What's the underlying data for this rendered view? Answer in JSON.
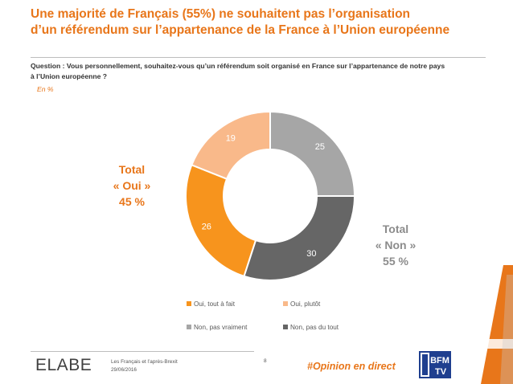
{
  "header": {
    "title_line1": "Une majorité de Français (55%) ne souhaitent pas l’organisation",
    "title_line2": "d’un référendum sur l’appartenance de la France à l’Union européenne",
    "question_line1": "Question : Vous personnellement, souhaitez-vous qu’un référendum soit organisé en France sur l’appartenance de notre pays",
    "question_line2": "à l’Union européenne ?",
    "unit": "En %"
  },
  "totals": {
    "oui_line1": "Total",
    "oui_line2": "« Oui »",
    "oui_line3": "45 %",
    "non_line1": "Total",
    "non_line2": "« Non »",
    "non_line3": "55 %"
  },
  "chart_data": {
    "type": "pie",
    "donut": true,
    "legend_position": "bottom",
    "categories": [
      "Oui, tout à fait",
      "Oui, plutôt",
      "Non, pas vraiment",
      "Non, pas du tout"
    ],
    "values": [
      26,
      19,
      25,
      30
    ],
    "colors": [
      "#F7941D",
      "#F9B98A",
      "#A6A6A6",
      "#666666"
    ]
  },
  "footer": {
    "logo_text": "ELABE",
    "study_title": "Les Français et l’après-Brexit",
    "date": "29/06/2016",
    "page": "8",
    "hashtag": "#Opinion en direct",
    "partner_line1": "BFM",
    "partner_line2": "TV"
  },
  "colors": {
    "accent": "#E8761A",
    "grey_total": "#8c8c8c"
  }
}
